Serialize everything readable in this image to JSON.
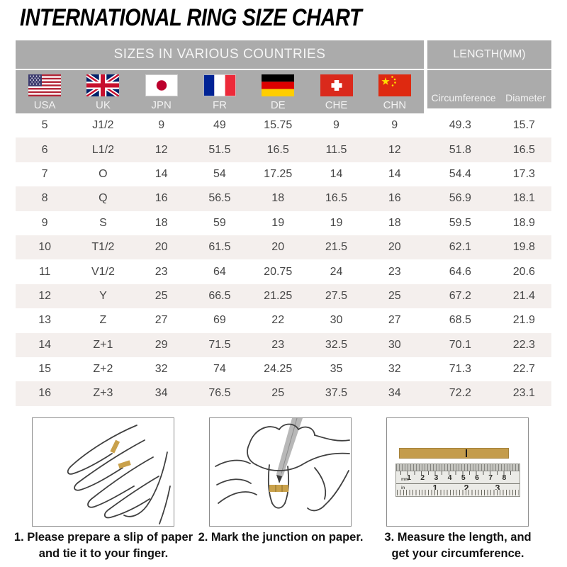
{
  "title": "INTERNATIONAL RING SIZE CHART",
  "chart_data": {
    "type": "table",
    "title": "INTERNATIONAL RING SIZE CHART",
    "header_groups": {
      "left": "SIZES IN VARIOUS COUNTRIES",
      "right": "LENGTH(MM)"
    },
    "columns": [
      "USA",
      "UK",
      "JPN",
      "FR",
      "DE",
      "CHE",
      "CHN",
      "Circumference",
      "Diameter"
    ],
    "rows": [
      [
        "5",
        "J1/2",
        "9",
        "49",
        "15.75",
        "9",
        "9",
        "49.3",
        "15.7"
      ],
      [
        "6",
        "L1/2",
        "12",
        "51.5",
        "16.5",
        "11.5",
        "12",
        "51.8",
        "16.5"
      ],
      [
        "7",
        "O",
        "14",
        "54",
        "17.25",
        "14",
        "14",
        "54.4",
        "17.3"
      ],
      [
        "8",
        "Q",
        "16",
        "56.5",
        "18",
        "16.5",
        "16",
        "56.9",
        "18.1"
      ],
      [
        "9",
        "S",
        "18",
        "59",
        "19",
        "19",
        "18",
        "59.5",
        "18.9"
      ],
      [
        "10",
        "T1/2",
        "20",
        "61.5",
        "20",
        "21.5",
        "20",
        "62.1",
        "19.8"
      ],
      [
        "11",
        "V1/2",
        "23",
        "64",
        "20.75",
        "24",
        "23",
        "64.6",
        "20.6"
      ],
      [
        "12",
        "Y",
        "25",
        "66.5",
        "21.25",
        "27.5",
        "25",
        "67.2",
        "21.4"
      ],
      [
        "13",
        "Z",
        "27",
        "69",
        "22",
        "30",
        "27",
        "68.5",
        "21.9"
      ],
      [
        "14",
        "Z+1",
        "29",
        "71.5",
        "23",
        "32.5",
        "30",
        "70.1",
        "22.3"
      ],
      [
        "15",
        "Z+2",
        "32",
        "74",
        "24.25",
        "35",
        "32",
        "71.3",
        "22.7"
      ],
      [
        "16",
        "Z+3",
        "34",
        "76.5",
        "25",
        "37.5",
        "34",
        "72.2",
        "23.1"
      ]
    ],
    "layout": {
      "alt_row_shading": true,
      "legend": "none"
    }
  },
  "steps": [
    {
      "lines": [
        "1. Please prepare a slip of paper",
        "and tie it to your finger."
      ]
    },
    {
      "lines": [
        "2. Mark the junction on paper."
      ]
    },
    {
      "lines": [
        "3. Measure the length, and",
        "get your circumference."
      ]
    }
  ],
  "illustrations": {
    "ruler": {
      "cm_numbers": [
        "1",
        "2",
        "3",
        "4",
        "5",
        "6",
        "7",
        "8"
      ],
      "inch_numbers": [
        "1",
        "2",
        "3"
      ],
      "unit_top": "mm",
      "unit_bottom": "in"
    }
  },
  "colors": {
    "header_gray": "#ababab",
    "alt_row": "#f4efed",
    "table_text": "#474747",
    "gold_strip": "#c49c4c",
    "title_text": "#000000"
  }
}
